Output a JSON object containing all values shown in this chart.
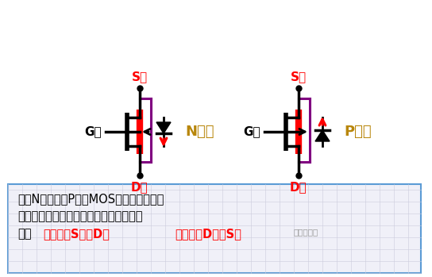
{
  "bg_color": "#ffffff",
  "n_channel_label": "N沟道",
  "p_channel_label": "P沟道",
  "s_label": "S极",
  "d_label": "D极",
  "g_label": "G极",
  "n_channel_color": "#b8860b",
  "p_channel_color": "#b8860b",
  "red_color": "#ff0000",
  "black_color": "#000000",
  "purple_color": "#800080",
  "text_line1": "不论N沟道还是P沟道MOS管，中间衬底箭",
  "text_line2": "头方向和寄生二极管的箭头方向总是一致",
  "text_line3_black": "的：",
  "text_line3_red1": "要么都由S指向D，",
  "text_line3_red2": "要么都由D指向S。",
  "text_line3_suffix": "硬件攻城狮",
  "box_border_color": "#5b9bd5"
}
